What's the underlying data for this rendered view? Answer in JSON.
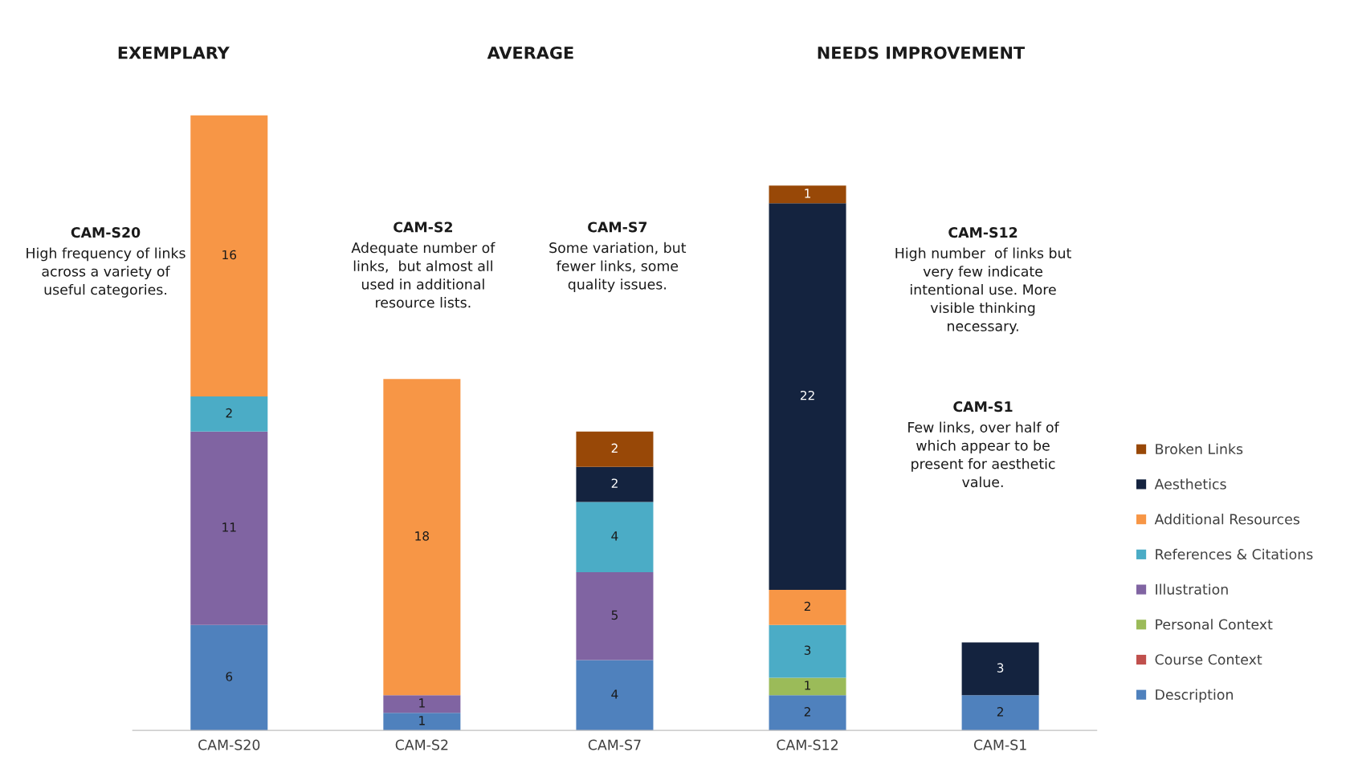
{
  "chart_data": {
    "type": "bar",
    "stacked": true,
    "data_labels": true,
    "legend": "right",
    "grid": false,
    "tick_labels": "x",
    "categories": [
      "CAM-S20",
      "CAM-S2",
      "CAM-S7",
      "CAM-S12",
      "CAM-S1"
    ],
    "series": [
      {
        "name": "Description",
        "color": "#4f81bd",
        "values": [
          6,
          1,
          4,
          2,
          2
        ]
      },
      {
        "name": "Course Context",
        "color": "#c0504d",
        "values": [
          null,
          null,
          null,
          null,
          null
        ]
      },
      {
        "name": "Personal Context",
        "color": "#9bbb59",
        "values": [
          null,
          null,
          null,
          1,
          null
        ]
      },
      {
        "name": "Illustration",
        "color": "#8064a2",
        "values": [
          11,
          1,
          5,
          null,
          null
        ]
      },
      {
        "name": "References & Citations",
        "color": "#4bacc6",
        "values": [
          2,
          null,
          4,
          3,
          null
        ]
      },
      {
        "name": "Additional Resources",
        "color": "#f79646",
        "values": [
          16,
          18,
          null,
          2,
          null
        ]
      },
      {
        "name": "Aesthetics",
        "color": "#14233f",
        "values": [
          null,
          null,
          2,
          22,
          3
        ]
      },
      {
        "name": "Broken Links",
        "color": "#984807",
        "values": [
          null,
          null,
          2,
          1,
          null
        ]
      }
    ],
    "annotations": [
      "EXEMPLARY",
      "AVERAGE",
      "NEEDS IMPROVEMENT",
      "CAM-S20\nHigh frequency of links\nacross a variety of\nuseful categories.",
      "CAM-S2\nAdequate number of\nlinks,  but almost all\nused in additional\nresource lists.",
      "CAM-S7\nSome variation, but\nfewer links, some\nquality issues.",
      "CAM-S12\nHigh number  of links but\nvery few indicate\nintentional use. More\nvisible thinking\nnecessary.",
      "CAM-S1\nFew links, over half of\nwhich appear to be\npresent for aesthetic\nvalue."
    ]
  }
}
